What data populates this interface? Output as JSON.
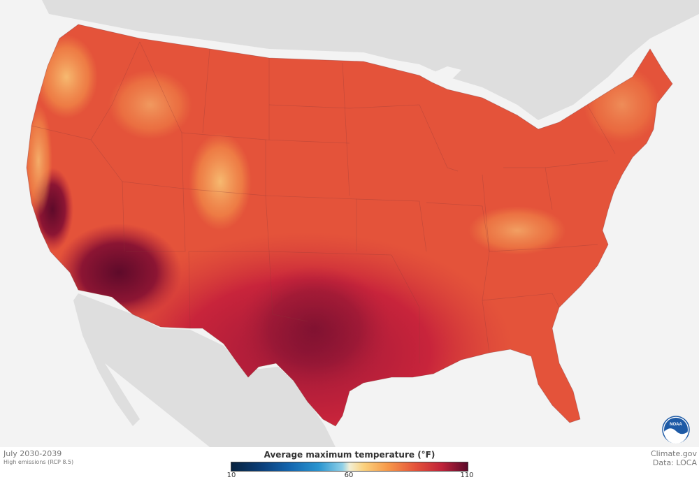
{
  "map": {
    "period": "July 2030-2039",
    "scenario": "High emissions (RCP 8.5)",
    "credit_site": "Climate.gov",
    "credit_data": "Data: LOCA",
    "logo_text": "NOAA",
    "colors": {
      "background": "#f3f3f3",
      "neighbor_land": "#dedede",
      "water": "#f4f4f4",
      "warm": "#e8553a",
      "hot": "#c8243b",
      "hottest": "#6a0c2c",
      "mild": "#f8b05a"
    }
  },
  "legend": {
    "title": "Average maximum temperature (°F)",
    "min_label": "10",
    "mid_label": "60",
    "max_label": "110",
    "range": [
      10,
      110
    ]
  }
}
